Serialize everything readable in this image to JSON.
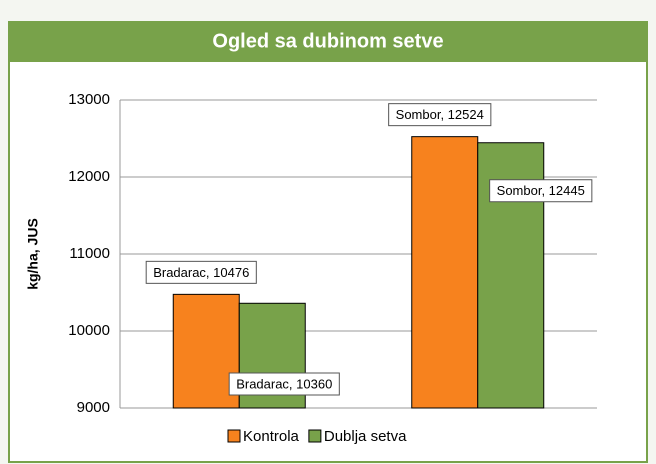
{
  "chart_data": {
    "type": "bar",
    "title": "Ogled sa dubinom setve",
    "y_label": "kg/ha, JUS",
    "categories": [
      null,
      null
    ],
    "series": [
      {
        "name": "Kontrola",
        "color": "#f7821e",
        "values": [
          10476,
          12524
        ],
        "value_labels": [
          "Bradarac, 10476",
          "Sombor, 12524"
        ]
      },
      {
        "name": "Dublja setva",
        "color": "#78a24a",
        "values": [
          10360,
          12445
        ],
        "value_labels": [
          "Bradarac, 10360",
          "Sombor, 12445"
        ]
      }
    ],
    "ylim": [
      9000,
      13000
    ],
    "yticks": [
      9000,
      10000,
      11000,
      12000,
      13000
    ],
    "grid": true
  }
}
